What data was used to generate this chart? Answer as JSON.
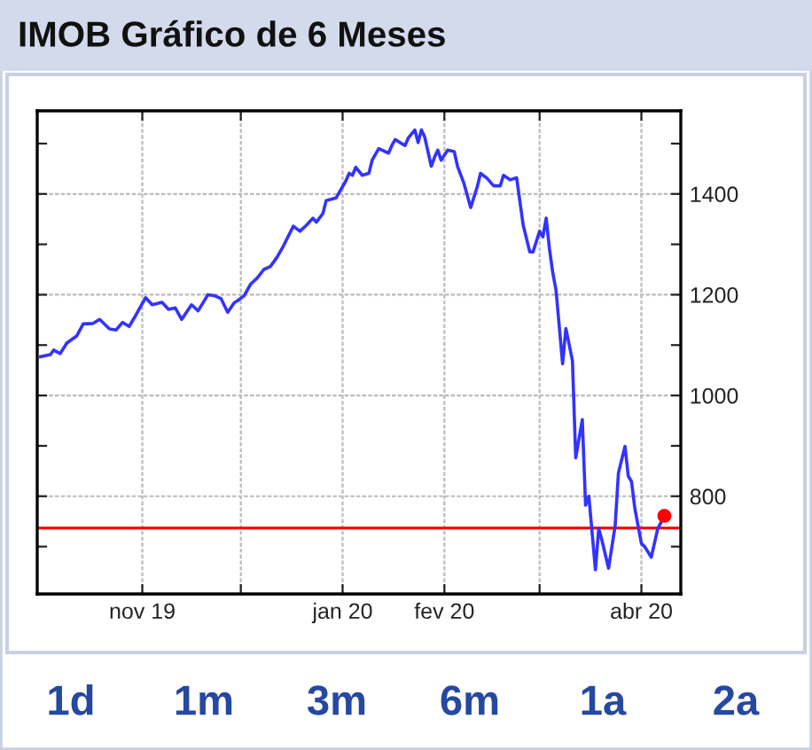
{
  "chart_data": {
    "type": "line",
    "title": "IMOB Gráfico de 6 Meses",
    "x": [
      "2019-10-01",
      "2019-10-04",
      "2019-10-05",
      "2019-10-07",
      "2019-10-09",
      "2019-10-12",
      "2019-10-14",
      "2019-10-17",
      "2019-10-19",
      "2019-10-22",
      "2019-10-24",
      "2019-10-26",
      "2019-10-28",
      "2019-10-30",
      "2019-11-02",
      "2019-11-04",
      "2019-11-07",
      "2019-11-09",
      "2019-11-11",
      "2019-11-13",
      "2019-11-16",
      "2019-11-18",
      "2019-11-21",
      "2019-11-23",
      "2019-11-25",
      "2019-11-27",
      "2019-11-29",
      "2019-11-30",
      "2019-12-02",
      "2019-12-04",
      "2019-12-06",
      "2019-12-08",
      "2019-12-10",
      "2019-12-12",
      "2019-12-14",
      "2019-12-17",
      "2019-12-19",
      "2019-12-21",
      "2019-12-23",
      "2019-12-24",
      "2019-12-26",
      "2019-12-27",
      "2019-12-30",
      "2020-01-02",
      "2020-01-03",
      "2020-01-04",
      "2020-01-05",
      "2020-01-07",
      "2020-01-09",
      "2020-01-10",
      "2020-01-12",
      "2020-01-15",
      "2020-01-16",
      "2020-01-17",
      "2020-01-20",
      "2020-01-21",
      "2020-01-23",
      "2020-01-24",
      "2020-01-25",
      "2020-01-26",
      "2020-01-28",
      "2020-01-29",
      "2020-01-30",
      "2020-01-31",
      "2020-02-02",
      "2020-02-04",
      "2020-02-05",
      "2020-02-07",
      "2020-02-09",
      "2020-02-11",
      "2020-02-12",
      "2020-02-14",
      "2020-02-16",
      "2020-02-18",
      "2020-02-19",
      "2020-02-21",
      "2020-02-23",
      "2020-02-25",
      "2020-02-27",
      "2020-02-28",
      "2020-03-01",
      "2020-03-02",
      "2020-03-03",
      "2020-03-04",
      "2020-03-05",
      "2020-03-06",
      "2020-03-08",
      "2020-03-09",
      "2020-03-11",
      "2020-03-12",
      "2020-03-14",
      "2020-03-15",
      "2020-03-16",
      "2020-03-18",
      "2020-03-19",
      "2020-03-20",
      "2020-03-22",
      "2020-03-24",
      "2020-03-25",
      "2020-03-27",
      "2020-03-28",
      "2020-03-29",
      "2020-03-30",
      "2020-04-01",
      "2020-04-02",
      "2020-04-04",
      "2020-04-06",
      "2020-04-08"
    ],
    "series": [
      {
        "color": "#3333ff",
        "values": [
          1077,
          1081,
          1090,
          1083,
          1104,
          1118,
          1142,
          1143,
          1151,
          1132,
          1130,
          1145,
          1137,
          1159,
          1194,
          1180,
          1185,
          1171,
          1174,
          1151,
          1180,
          1168,
          1200,
          1198,
          1192,
          1165,
          1184,
          1188,
          1198,
          1221,
          1233,
          1250,
          1256,
          1274,
          1297,
          1336,
          1326,
          1338,
          1352,
          1344,
          1361,
          1387,
          1392,
          1426,
          1441,
          1437,
          1453,
          1437,
          1441,
          1467,
          1490,
          1481,
          1496,
          1508,
          1496,
          1511,
          1527,
          1502,
          1527,
          1513,
          1455,
          1473,
          1487,
          1467,
          1487,
          1484,
          1455,
          1420,
          1373,
          1414,
          1441,
          1431,
          1416,
          1416,
          1437,
          1428,
          1432,
          1338,
          1285,
          1285,
          1326,
          1315,
          1352,
          1291,
          1244,
          1209,
          1063,
          1133,
          1069,
          876,
          952,
          782,
          800,
          654,
          736,
          712,
          657,
          741,
          846,
          899,
          840,
          829,
          776,
          706,
          700,
          679,
          736,
          761
        ]
      },
      {
        "type": "scatter",
        "color": "#ff0000",
        "x": [
          "2020-04-08"
        ],
        "values": [
          761
        ],
        "marker": "circle"
      }
    ],
    "xlim": [
      "2019-09-30",
      "2020-04-13"
    ],
    "xticks": [
      {
        "value": "2019-11-01",
        "label": "nov 19"
      },
      {
        "value": "2019-12-01",
        "label": null
      },
      {
        "value": "2020-01-01",
        "label": "jan 20"
      },
      {
        "value": "2020-02-01",
        "label": "fev 20"
      },
      {
        "value": "2020-03-01",
        "label": null
      },
      {
        "value": "2020-04-01",
        "label": "abr 20"
      }
    ],
    "ylim": [
      606,
      1565
    ],
    "yticks": [
      {
        "value": 700,
        "label": null
      },
      800,
      {
        "value": 900,
        "label": null
      },
      1000,
      {
        "value": 1100,
        "label": null
      },
      1200,
      {
        "value": 1300,
        "label": null
      },
      1400,
      {
        "value": 1500,
        "label": null
      }
    ],
    "ref_lines": [
      {
        "axis": "y",
        "value": 737,
        "color": "#ff0000"
      }
    ],
    "grid": true,
    "annotations": [
      "1d",
      "1m",
      "3m",
      "6m",
      "1a",
      "2a"
    ]
  }
}
